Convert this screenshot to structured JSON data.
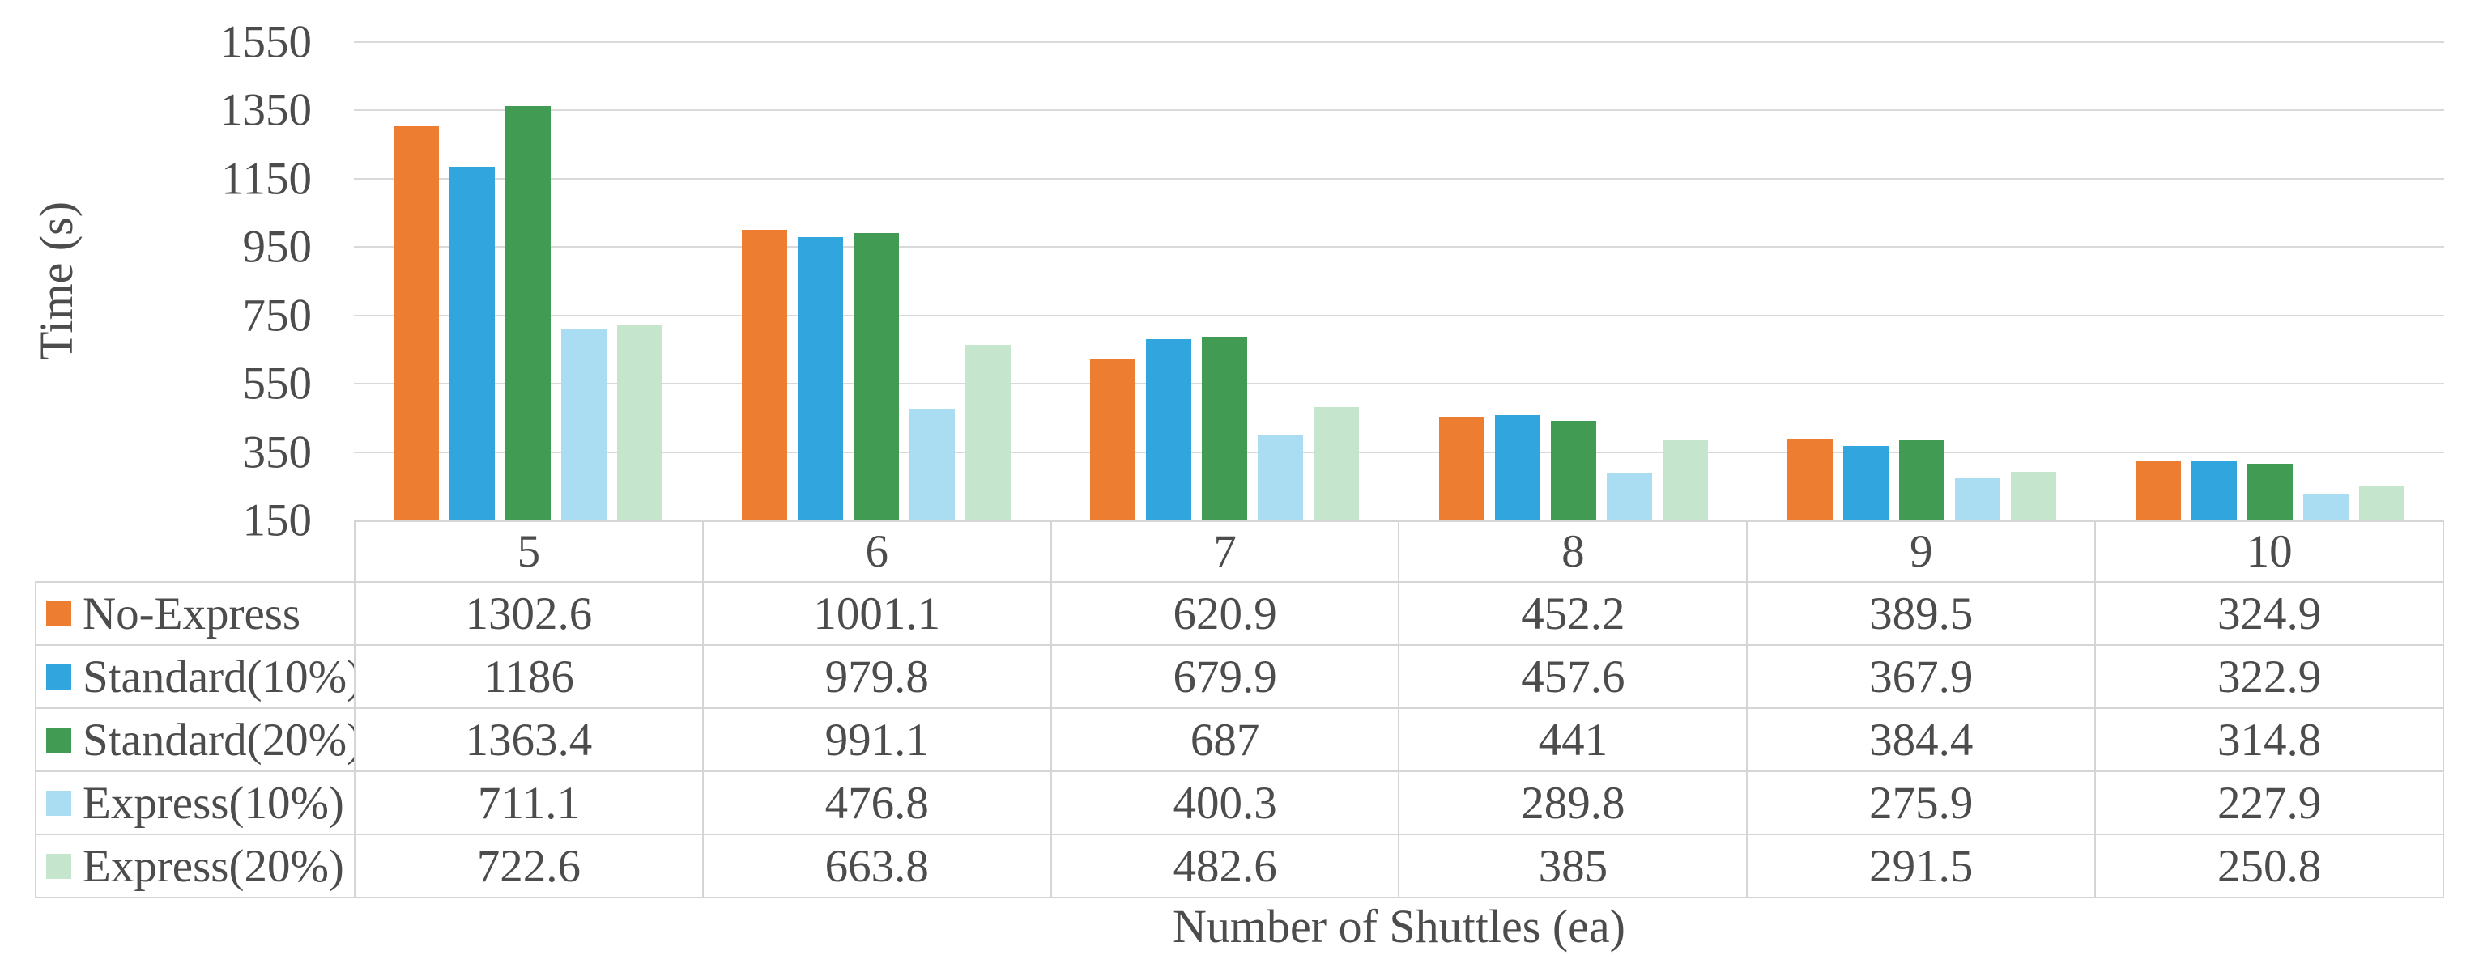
{
  "chart_data": {
    "type": "bar",
    "title": "",
    "xlabel": "Number of Shuttles (ea)",
    "ylabel": "Time (s)",
    "categories": [
      5,
      6,
      7,
      8,
      9,
      10
    ],
    "series": [
      {
        "name": "No-Express",
        "color": "#ED7D31",
        "values": [
          1302.6,
          1001.1,
          620.9,
          452.2,
          389.5,
          324.9
        ]
      },
      {
        "name": "Standard(10%)",
        "color": "#31A5DE",
        "values": [
          1186,
          979.8,
          679.9,
          457.6,
          367.9,
          322.9
        ]
      },
      {
        "name": "Standard(20%)",
        "color": "#429B53",
        "values": [
          1363.4,
          991.1,
          687,
          441,
          384.4,
          314.8
        ]
      },
      {
        "name": "Express(10%)",
        "color": "#ABDDF2",
        "values": [
          711.1,
          476.8,
          400.3,
          289.8,
          275.9,
          227.9
        ]
      },
      {
        "name": "Express(20%)",
        "color": "#C5E5CD",
        "values": [
          722.6,
          663.8,
          482.6,
          385,
          291.5,
          250.8
        ]
      }
    ],
    "ylim": [
      150,
      1550
    ],
    "yticks": [
      150,
      350,
      550,
      750,
      950,
      1150,
      1350,
      1550
    ],
    "ytick_step": 200,
    "grid": true,
    "legend_position": "table-left",
    "data_table_shown": true
  },
  "colors": {
    "text": "#4c4c4c",
    "grid": "#D9D9D9",
    "table_border": "#D5D5D5",
    "background": "#FFFFFF"
  }
}
